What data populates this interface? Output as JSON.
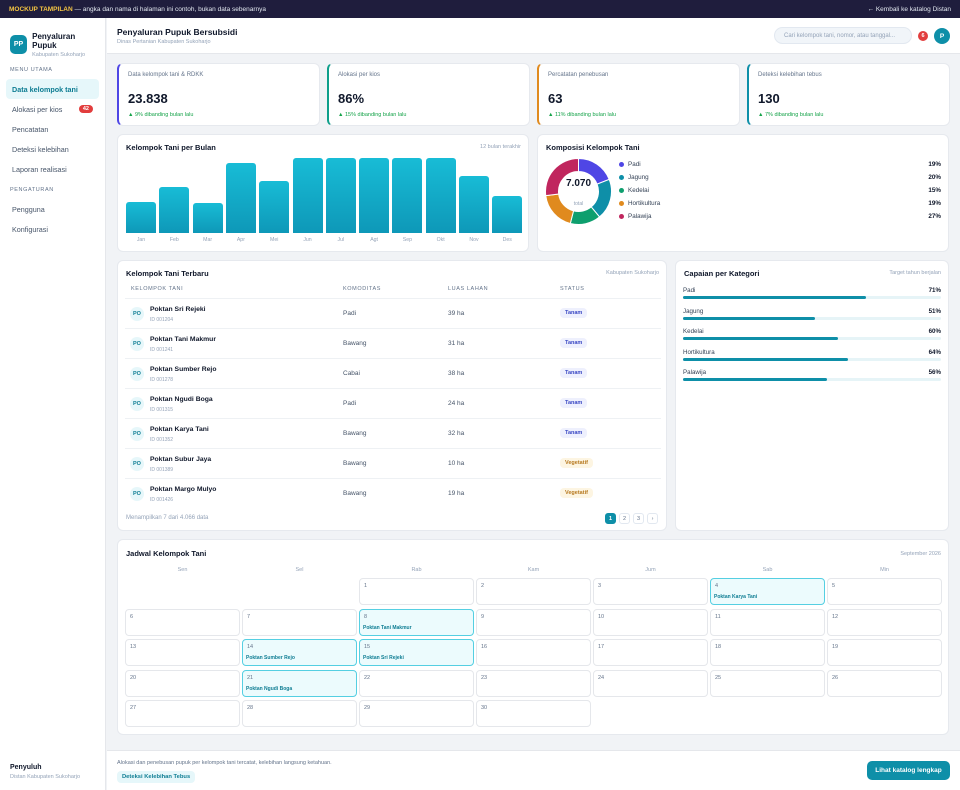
{
  "topbar": {
    "tag": "MOCKUP TAMPILAN",
    "note": "— angka dan nama di halaman ini contoh, bukan data sebenarnya",
    "back": "← Kembali ke katalog Distan"
  },
  "brand": {
    "logo": "PP",
    "title": "Penyaluran Pupuk",
    "subtitle": "Kabupaten Sukoharjo"
  },
  "sidebar": {
    "section_main": "MENU UTAMA",
    "main_items": [
      {
        "label": "Data kelompok tani",
        "active": true
      },
      {
        "label": "Alokasi per kios",
        "badge": "42"
      },
      {
        "label": "Pencatatan"
      },
      {
        "label": "Deteksi kelebihan"
      },
      {
        "label": "Laporan realisasi"
      }
    ],
    "section_settings": "PENGATURAN",
    "settings_items": [
      {
        "label": "Pengguna"
      },
      {
        "label": "Konfigurasi"
      }
    ],
    "footer_name": "Penyuluh",
    "footer_sub": "Distan Kabupaten Sukoharjo"
  },
  "header": {
    "title": "Penyaluran Pupuk Bersubsidi",
    "subtitle": "Dinas Pertanian Kabupaten Sukoharjo",
    "search_placeholder": "Cari kelompok tani, nomor, atau tanggal...",
    "notif_count": "6",
    "avatar": "P"
  },
  "kpis": [
    {
      "label": "Data kelompok tani & RDKK",
      "value": "23.838",
      "change": "▲ 9% dibanding bulan lalu",
      "accent": "#4f46e5"
    },
    {
      "label": "Alokasi per kios",
      "value": "86%",
      "change": "▲ 15% dibanding bulan lalu",
      "accent": "#0e9f8a"
    },
    {
      "label": "Percatatan penebusan",
      "value": "63",
      "change": "▲ 11% dibanding bulan lalu",
      "accent": "#e08a1e"
    },
    {
      "label": "Deteksi kelebihan tebus",
      "value": "130",
      "change": "▲ 7% dibanding bulan lalu",
      "accent": "#0e8fa8"
    }
  ],
  "chart_data": [
    {
      "type": "bar",
      "title": "Kelompok Tani per Bulan",
      "note": "12 bulan terakhir",
      "categories": [
        "Jan",
        "Feb",
        "Mar",
        "Apr",
        "Mei",
        "Jun",
        "Jul",
        "Agt",
        "Sep",
        "Okt",
        "Nov",
        "Des"
      ],
      "values": [
        41,
        62,
        40,
        94,
        69,
        100,
        100,
        100,
        100,
        100,
        76,
        49
      ],
      "ylim": [
        0,
        100
      ]
    },
    {
      "type": "pie",
      "title": "Komposisi Kelompok Tani",
      "center_value": "7.070",
      "center_label": "total",
      "categories": [
        "Padi",
        "Jagung",
        "Kedelai",
        "Hortikultura",
        "Palawija"
      ],
      "values": [
        19,
        20,
        15,
        19,
        27
      ],
      "labels": [
        "19%",
        "20%",
        "15%",
        "19%",
        "27%"
      ],
      "colors": [
        "#4f46e5",
        "#0e8fa8",
        "#0e9f6e",
        "#e08a1e",
        "#c0265e"
      ]
    }
  ],
  "table": {
    "title": "Kelompok Tani Terbaru",
    "note": "Kabupaten Sukoharjo",
    "columns": [
      "KELOMPOK TANI",
      "KOMODITAS",
      "LUAS LAHAN",
      "STATUS"
    ],
    "rows": [
      {
        "initials": "PO",
        "name": "Poktan Sri Rejeki",
        "id": "ID 001204",
        "komoditas": "Padi",
        "luas": "39 ha",
        "status": "Tanam"
      },
      {
        "initials": "PO",
        "name": "Poktan Tani Makmur",
        "id": "ID 001241",
        "komoditas": "Bawang",
        "luas": "31 ha",
        "status": "Tanam"
      },
      {
        "initials": "PO",
        "name": "Poktan Sumber Rejo",
        "id": "ID 001278",
        "komoditas": "Cabai",
        "luas": "38 ha",
        "status": "Tanam"
      },
      {
        "initials": "PO",
        "name": "Poktan Ngudi Boga",
        "id": "ID 001315",
        "komoditas": "Padi",
        "luas": "24 ha",
        "status": "Tanam"
      },
      {
        "initials": "PO",
        "name": "Poktan Karya Tani",
        "id": "ID 001352",
        "komoditas": "Bawang",
        "luas": "32 ha",
        "status": "Tanam"
      },
      {
        "initials": "PO",
        "name": "Poktan Subur Jaya",
        "id": "ID 001389",
        "komoditas": "Bawang",
        "luas": "10 ha",
        "status": "Vegetatif"
      },
      {
        "initials": "PO",
        "name": "Poktan Margo Mulyo",
        "id": "ID 001426",
        "komoditas": "Bawang",
        "luas": "19 ha",
        "status": "Vegetatif"
      }
    ],
    "footer": "Menampilkan 7 dari 4.066 data",
    "pages": [
      "1",
      "2",
      "3",
      "›"
    ]
  },
  "progress": {
    "title": "Capaian per Kategori",
    "note": "Target tahun berjalan",
    "items": [
      {
        "label": "Padi",
        "pct": "71%",
        "value": 71
      },
      {
        "label": "Jagung",
        "pct": "51%",
        "value": 51
      },
      {
        "label": "Kedelai",
        "pct": "60%",
        "value": 60
      },
      {
        "label": "Hortikultura",
        "pct": "64%",
        "value": 64
      },
      {
        "label": "Palawija",
        "pct": "56%",
        "value": 56
      }
    ]
  },
  "calendar": {
    "title": "Jadwal Kelompok Tani",
    "month": "September 2026",
    "days": [
      "Sen",
      "Sel",
      "Rab",
      "Kam",
      "Jum",
      "Sab",
      "Min"
    ],
    "start_offset": 2,
    "days_in_month": 30,
    "events": {
      "4": "Poktan Karya Tani",
      "8": "Poktan Tani Makmur",
      "14": "Poktan Sumber Rejo",
      "15": "Poktan Sri Rejeki",
      "21": "Poktan Ngudi Boga"
    }
  },
  "footer": {
    "text": "Alokasi dan penebusan pupuk per kelompok tani tercatat, kelebihan langsung ketahuan.",
    "chip": "Deteksi Kelebihan Tebus",
    "button": "Lihat katalog lengkap"
  }
}
